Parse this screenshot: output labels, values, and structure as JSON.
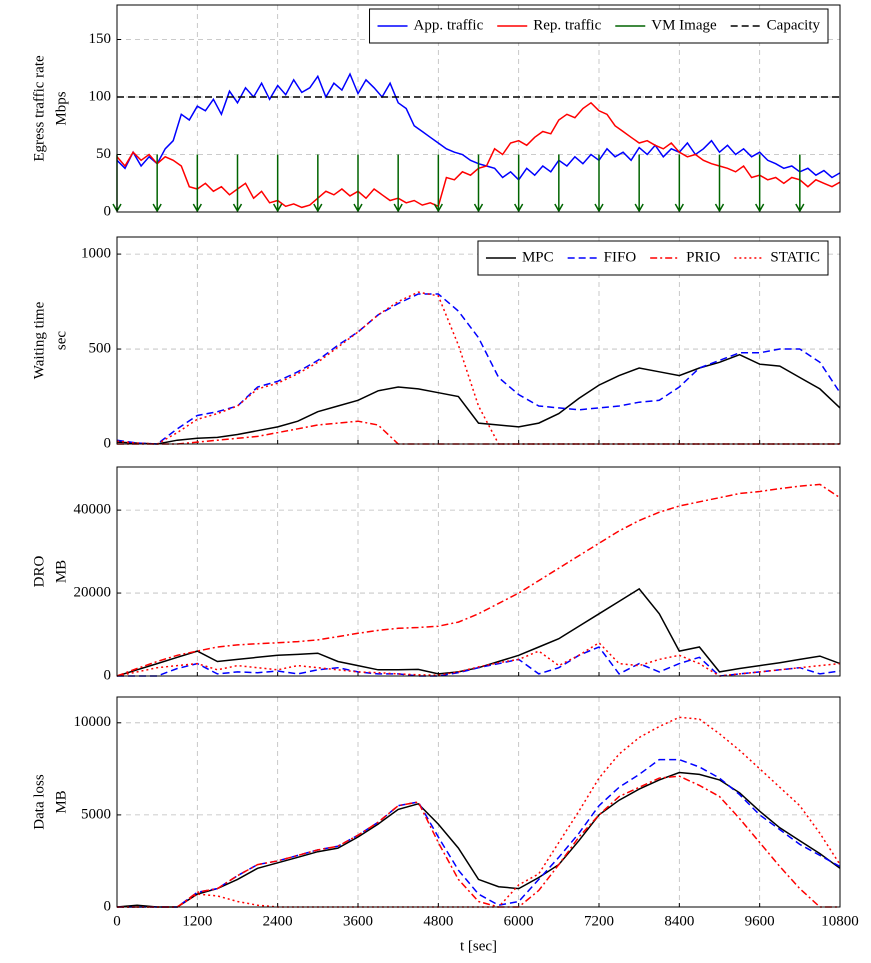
{
  "chart_data": [
    {
      "type": "line",
      "ylabel": [
        "Egress traffic rate",
        "Mbps"
      ],
      "xlim": [
        0,
        10800
      ],
      "xticks": [
        0,
        1200,
        2400,
        3600,
        4800,
        6000,
        7200,
        8400,
        9600,
        10800
      ],
      "ylim": [
        0,
        180
      ],
      "yticks": [
        0,
        50,
        100,
        150
      ],
      "grid": true,
      "legend": "upper right",
      "x": [
        0,
        120,
        240,
        360,
        480,
        600,
        720,
        840,
        960,
        1080,
        1200,
        1320,
        1440,
        1560,
        1680,
        1800,
        1920,
        2040,
        2160,
        2280,
        2400,
        2520,
        2640,
        2760,
        2880,
        3000,
        3120,
        3240,
        3360,
        3480,
        3600,
        3720,
        3840,
        3960,
        4080,
        4200,
        4320,
        4440,
        4560,
        4680,
        4800,
        4920,
        5040,
        5160,
        5280,
        5400,
        5520,
        5640,
        5760,
        5880,
        6000,
        6120,
        6240,
        6360,
        6480,
        6600,
        6720,
        6840,
        6960,
        7080,
        7200,
        7320,
        7440,
        7560,
        7680,
        7800,
        7920,
        8040,
        8160,
        8280,
        8400,
        8520,
        8640,
        8760,
        8880,
        9000,
        9120,
        9240,
        9360,
        9480,
        9600,
        9720,
        9840,
        9960,
        10080,
        10200,
        10320,
        10440,
        10560,
        10680,
        10800
      ],
      "series": [
        {
          "name": "App. traffic",
          "color": "#0000ff",
          "dash": "solid",
          "values": [
            45,
            38,
            52,
            40,
            48,
            42,
            55,
            62,
            85,
            80,
            92,
            88,
            98,
            85,
            105,
            95,
            108,
            100,
            112,
            98,
            110,
            102,
            115,
            104,
            108,
            118,
            100,
            112,
            106,
            120,
            103,
            115,
            108,
            100,
            112,
            95,
            90,
            75,
            70,
            65,
            60,
            55,
            52,
            50,
            45,
            42,
            40,
            38,
            30,
            35,
            28,
            38,
            32,
            40,
            35,
            45,
            40,
            48,
            42,
            50,
            45,
            55,
            48,
            52,
            45,
            56,
            50,
            58,
            48,
            55,
            52,
            60,
            50,
            55,
            62,
            52,
            58,
            50,
            55,
            48,
            52,
            45,
            42,
            38,
            40,
            35,
            38,
            32,
            36,
            30,
            34
          ]
        },
        {
          "name": "Rep. traffic",
          "color": "#ff0000",
          "dash": "solid",
          "values": [
            48,
            40,
            52,
            45,
            50,
            42,
            48,
            45,
            40,
            22,
            20,
            25,
            18,
            22,
            15,
            20,
            25,
            12,
            18,
            8,
            10,
            5,
            7,
            4,
            6,
            12,
            18,
            15,
            20,
            14,
            18,
            12,
            20,
            15,
            10,
            12,
            8,
            10,
            6,
            8,
            5,
            30,
            28,
            35,
            32,
            38,
            40,
            55,
            50,
            60,
            62,
            58,
            65,
            70,
            68,
            80,
            85,
            82,
            90,
            95,
            88,
            85,
            75,
            70,
            65,
            60,
            62,
            58,
            55,
            60,
            52,
            48,
            50,
            45,
            42,
            40,
            38,
            35,
            40,
            30,
            32,
            28,
            30,
            25,
            30,
            28,
            22,
            28,
            25,
            22,
            26
          ]
        },
        {
          "name": "VM Image",
          "color": "#006400",
          "type": "stem",
          "x": [
            0,
            600,
            1200,
            1800,
            2400,
            3000,
            3600,
            4200,
            4800,
            5400,
            6000,
            6600,
            7200,
            7800,
            8400,
            9000,
            9600,
            10200
          ],
          "values": [
            50,
            50,
            50,
            50,
            50,
            50,
            50,
            50,
            50,
            50,
            50,
            50,
            50,
            50,
            50,
            50,
            50,
            50
          ]
        },
        {
          "name": "Capacity",
          "color": "#000000",
          "dash": "dashed",
          "x": [
            0,
            10800
          ],
          "values": [
            100,
            100
          ]
        }
      ]
    },
    {
      "type": "line",
      "ylabel": [
        "Waiting time",
        "sec"
      ],
      "xlim": [
        0,
        10800
      ],
      "xticks": [
        0,
        1200,
        2400,
        3600,
        4800,
        6000,
        7200,
        8400,
        9600,
        10800
      ],
      "ylim": [
        0,
        1090
      ],
      "yticks": [
        0,
        500,
        1000
      ],
      "grid": true,
      "legend": "upper right",
      "x": [
        0,
        300,
        600,
        900,
        1200,
        1500,
        1800,
        2100,
        2400,
        2700,
        3000,
        3300,
        3600,
        3900,
        4200,
        4500,
        4800,
        5100,
        5400,
        5700,
        6000,
        6300,
        6600,
        6900,
        7200,
        7500,
        7800,
        8100,
        8400,
        8700,
        9000,
        9300,
        9600,
        9900,
        10200,
        10500,
        10800
      ],
      "series": [
        {
          "name": "MPC",
          "color": "#000000",
          "dash": "solid",
          "values": [
            10,
            5,
            0,
            20,
            30,
            35,
            50,
            70,
            90,
            120,
            170,
            200,
            230,
            280,
            300,
            290,
            270,
            250,
            110,
            100,
            90,
            110,
            160,
            240,
            310,
            360,
            400,
            380,
            360,
            400,
            430,
            470,
            420,
            410,
            350,
            290,
            190
          ]
        },
        {
          "name": "FIFO",
          "color": "#0000ff",
          "dash": "dashed",
          "values": [
            20,
            5,
            0,
            80,
            150,
            170,
            200,
            300,
            330,
            380,
            440,
            520,
            590,
            680,
            740,
            790,
            790,
            700,
            560,
            350,
            260,
            200,
            190,
            180,
            190,
            200,
            220,
            230,
            300,
            400,
            440,
            480,
            480,
            500,
            500,
            430,
            270
          ]
        },
        {
          "name": "PRIO",
          "color": "#ff0000",
          "dash": "dashdot",
          "values": [
            0,
            0,
            0,
            0,
            10,
            20,
            30,
            40,
            60,
            80,
            100,
            110,
            120,
            100,
            0,
            0,
            0,
            0,
            0,
            0,
            0,
            0,
            0,
            0,
            0,
            0,
            0,
            0,
            0,
            0,
            0,
            0,
            0,
            0,
            0,
            0,
            0
          ]
        },
        {
          "name": "STATIC",
          "color": "#ff0000",
          "dash": "dotted",
          "values": [
            15,
            5,
            0,
            60,
            130,
            160,
            200,
            290,
            320,
            370,
            430,
            510,
            590,
            680,
            750,
            800,
            780,
            520,
            200,
            0,
            0,
            0,
            0,
            0,
            0,
            0,
            0,
            0,
            0,
            0,
            0,
            0,
            0,
            0,
            0,
            0,
            0
          ]
        }
      ]
    },
    {
      "type": "line",
      "ylabel": [
        "DRO",
        "MB"
      ],
      "xlim": [
        0,
        10800
      ],
      "xticks": [
        0,
        1200,
        2400,
        3600,
        4800,
        6000,
        7200,
        8400,
        9600,
        10800
      ],
      "ylim": [
        0,
        50400
      ],
      "yticks": [
        0,
        20000,
        40000
      ],
      "grid": true,
      "x": [
        0,
        300,
        600,
        900,
        1200,
        1500,
        1800,
        2100,
        2400,
        2700,
        3000,
        3300,
        3600,
        3900,
        4200,
        4500,
        4800,
        5100,
        5400,
        5700,
        6000,
        6300,
        6600,
        6900,
        7200,
        7500,
        7800,
        8100,
        8400,
        8700,
        9000,
        9300,
        9600,
        9900,
        10200,
        10500,
        10800
      ],
      "series": [
        {
          "color": "#000000",
          "dash": "solid",
          "values": [
            0,
            1500,
            3000,
            4500,
            6000,
            3500,
            4000,
            4500,
            5000,
            5200,
            5500,
            3500,
            2500,
            1500,
            1500,
            1600,
            500,
            1000,
            2000,
            3500,
            5000,
            7000,
            9000,
            12000,
            15000,
            18000,
            21000,
            15000,
            6000,
            7000,
            1000,
            1800,
            2500,
            3200,
            4000,
            4800,
            3000
          ]
        },
        {
          "color": "#0000ff",
          "dash": "dashed",
          "values": [
            0,
            0,
            0,
            1800,
            3000,
            500,
            1000,
            800,
            1200,
            500,
            1500,
            2000,
            1000,
            500,
            500,
            0,
            0,
            800,
            2000,
            3000,
            4000,
            500,
            2000,
            5000,
            7000,
            500,
            3000,
            1000,
            3000,
            4500,
            0,
            500,
            1000,
            1500,
            2000,
            500,
            1200
          ]
        },
        {
          "color": "#ff0000",
          "dash": "dashdot",
          "values": [
            0,
            1800,
            3500,
            5000,
            6000,
            7000,
            7500,
            7800,
            8000,
            8300,
            8700,
            9500,
            10300,
            11000,
            11500,
            11700,
            12000,
            13000,
            15000,
            17500,
            20000,
            23000,
            26000,
            29000,
            32000,
            35000,
            37500,
            39500,
            41000,
            42000,
            43000,
            44000,
            44500,
            45200,
            45800,
            46200,
            43000
          ]
        },
        {
          "color": "#ff0000",
          "dash": "dotted",
          "values": [
            0,
            1000,
            2000,
            2500,
            3000,
            1500,
            2500,
            2000,
            1500,
            2500,
            2000,
            1500,
            1000,
            800,
            500,
            300,
            200,
            1000,
            2200,
            3200,
            4000,
            6000,
            2500,
            5000,
            8000,
            3000,
            2500,
            4000,
            5000,
            3000,
            0,
            500,
            1000,
            1500,
            2000,
            2500,
            3000
          ]
        }
      ]
    },
    {
      "type": "line",
      "ylabel": [
        "Data loss",
        "MB"
      ],
      "xlabel": "t [sec]",
      "xticklabels": true,
      "xlim": [
        0,
        10800
      ],
      "xticks": [
        0,
        1200,
        2400,
        3600,
        4800,
        6000,
        7200,
        8400,
        9600,
        10800
      ],
      "ylim": [
        0,
        11400
      ],
      "yticks": [
        0,
        5000,
        10000
      ],
      "grid": true,
      "x": [
        0,
        300,
        600,
        900,
        1200,
        1500,
        1800,
        2100,
        2400,
        2700,
        3000,
        3300,
        3600,
        3900,
        4200,
        4500,
        4800,
        5100,
        5400,
        5700,
        6000,
        6300,
        6600,
        6900,
        7200,
        7500,
        7800,
        8100,
        8400,
        8700,
        9000,
        9300,
        9600,
        9900,
        10200,
        10500,
        10800
      ],
      "series": [
        {
          "color": "#000000",
          "dash": "solid",
          "values": [
            0,
            100,
            0,
            0,
            700,
            1000,
            1500,
            2100,
            2400,
            2700,
            3000,
            3200,
            3800,
            4500,
            5300,
            5600,
            4500,
            3200,
            1500,
            1100,
            1000,
            1600,
            2300,
            3600,
            5000,
            5800,
            6400,
            6900,
            7300,
            7200,
            6900,
            6200,
            5200,
            4300,
            3600,
            2900,
            2100
          ]
        },
        {
          "color": "#0000ff",
          "dash": "dashed",
          "values": [
            0,
            0,
            0,
            0,
            800,
            1000,
            1700,
            2300,
            2500,
            2800,
            3100,
            3300,
            3900,
            4600,
            5500,
            5700,
            3800,
            2000,
            700,
            100,
            300,
            1500,
            2700,
            4000,
            5500,
            6500,
            7200,
            8000,
            8000,
            7600,
            7000,
            6100,
            5000,
            4200,
            3400,
            2800,
            2200
          ]
        },
        {
          "color": "#ff0000",
          "dash": "dashdot",
          "values": [
            0,
            0,
            0,
            0,
            800,
            1000,
            1700,
            2300,
            2500,
            2800,
            3100,
            3300,
            3900,
            4600,
            5500,
            5700,
            3500,
            1500,
            300,
            0,
            0,
            900,
            2300,
            3800,
            5000,
            6000,
            6500,
            7000,
            7100,
            6600,
            6000,
            4800,
            3500,
            2200,
            1000,
            0,
            0
          ]
        },
        {
          "color": "#ff0000",
          "dash": "dotted",
          "values": [
            0,
            0,
            0,
            0,
            700,
            600,
            300,
            100,
            0,
            0,
            0,
            0,
            0,
            0,
            0,
            0,
            0,
            0,
            0,
            0,
            1200,
            1800,
            3500,
            5200,
            7000,
            8300,
            9200,
            9800,
            10300,
            10200,
            9400,
            8500,
            7500,
            6500,
            5500,
            4000,
            2300
          ]
        }
      ]
    }
  ]
}
